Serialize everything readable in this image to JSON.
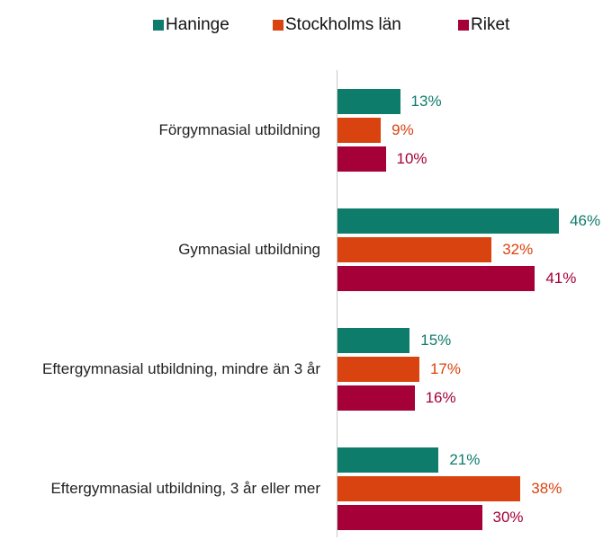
{
  "chart_data": {
    "type": "bar",
    "orientation": "horizontal",
    "categories": [
      "Förgymnasial utbildning",
      "Gymnasial utbildning",
      "Eftergymnasial utbildning, mindre än 3 år",
      "Eftergymnasial utbildning, 3 år eller mer"
    ],
    "series": [
      {
        "name": "Haninge",
        "color": "#0e7c6b",
        "values": [
          13,
          46,
          15,
          21
        ],
        "value_labels": [
          "13%",
          "46%",
          "15%",
          "21%"
        ]
      },
      {
        "name": "Stockholms län",
        "color": "#d9430f",
        "values": [
          9,
          32,
          17,
          38
        ],
        "value_labels": [
          "9%",
          "32%",
          "17%",
          "38%"
        ]
      },
      {
        "name": "Riket",
        "color": "#a50038",
        "values": [
          10,
          41,
          16,
          30
        ],
        "value_labels": [
          "10%",
          "41%",
          "16%",
          "30%"
        ]
      }
    ],
    "legend": "top"
  }
}
